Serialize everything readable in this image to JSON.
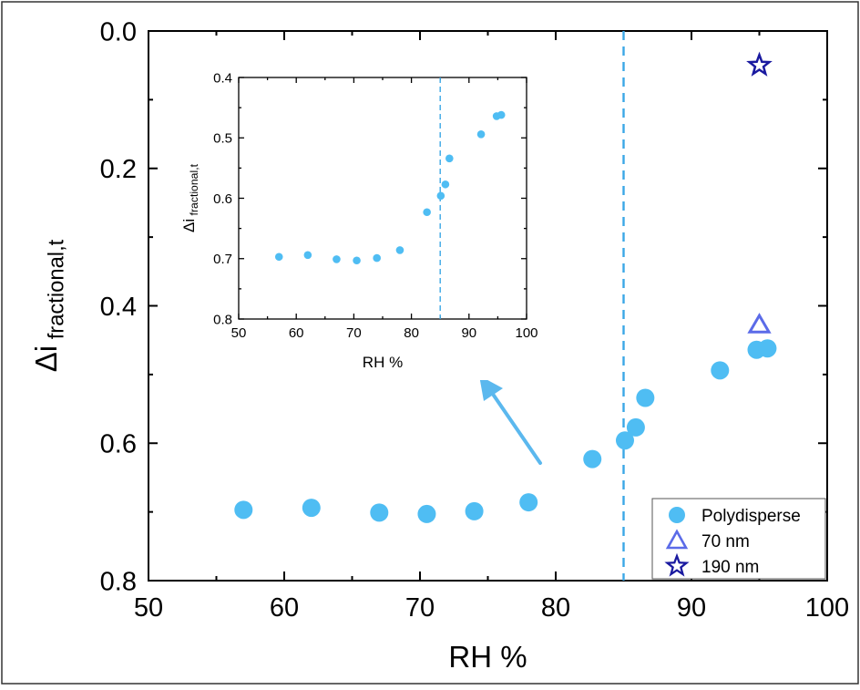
{
  "colors": {
    "polydisperse": "#4FBDF3",
    "nm70": "#5B6BE8",
    "nm190": "#1A1AA0",
    "threshold_line": "#3BA7E6",
    "arrow": "#5BB8EE",
    "axis": "#000000",
    "frame": "#333333"
  },
  "chart_data": [
    {
      "type": "scatter",
      "xlabel": "RH %",
      "ylabel_main": "Δi",
      "ylabel_sub": "fractional,t",
      "xlim": [
        50,
        100
      ],
      "ylim": [
        0.8,
        0.0
      ],
      "y_inverted": true,
      "xticks": [
        "50",
        "60",
        "70",
        "80",
        "90",
        "100"
      ],
      "yticks": [
        "0.0",
        "0.2",
        "0.4",
        "0.6",
        "0.8"
      ],
      "vline_x": 85,
      "legend_position": "bottom-right",
      "series": [
        {
          "name": "Polydisperse",
          "marker": "circle",
          "x": [
            57,
            62,
            67,
            70.5,
            74,
            78,
            82.7,
            85.1,
            85.9,
            86.6,
            92.1,
            94.8,
            95.6
          ],
          "y": [
            0.697,
            0.694,
            0.701,
            0.703,
            0.699,
            0.686,
            0.623,
            0.596,
            0.577,
            0.534,
            0.494,
            0.464,
            0.462
          ]
        },
        {
          "name": "70 nm",
          "marker": "triangle",
          "x": [
            95
          ],
          "y": [
            0.428
          ]
        },
        {
          "name": "190 nm",
          "marker": "star",
          "x": [
            95
          ],
          "y": [
            0.05
          ]
        }
      ]
    },
    {
      "type": "scatter",
      "inset": true,
      "xlabel": "RH %",
      "ylabel_main": "Δi",
      "ylabel_sub": "fractional,t",
      "xlim": [
        50,
        100
      ],
      "ylim": [
        0.8,
        0.4
      ],
      "y_inverted": true,
      "xticks": [
        "50",
        "60",
        "70",
        "80",
        "90",
        "100"
      ],
      "yticks": [
        "0.4",
        "0.5",
        "0.6",
        "0.7",
        "0.8"
      ],
      "vline_x": 85,
      "series": [
        {
          "marker": "circle",
          "x": [
            57,
            62,
            67,
            70.5,
            74,
            78,
            82.7,
            85.1,
            85.9,
            86.6,
            92.1,
            94.8,
            95.6
          ],
          "y": [
            0.697,
            0.694,
            0.701,
            0.703,
            0.699,
            0.686,
            0.623,
            0.596,
            0.577,
            0.534,
            0.494,
            0.464,
            0.462
          ]
        }
      ]
    }
  ]
}
